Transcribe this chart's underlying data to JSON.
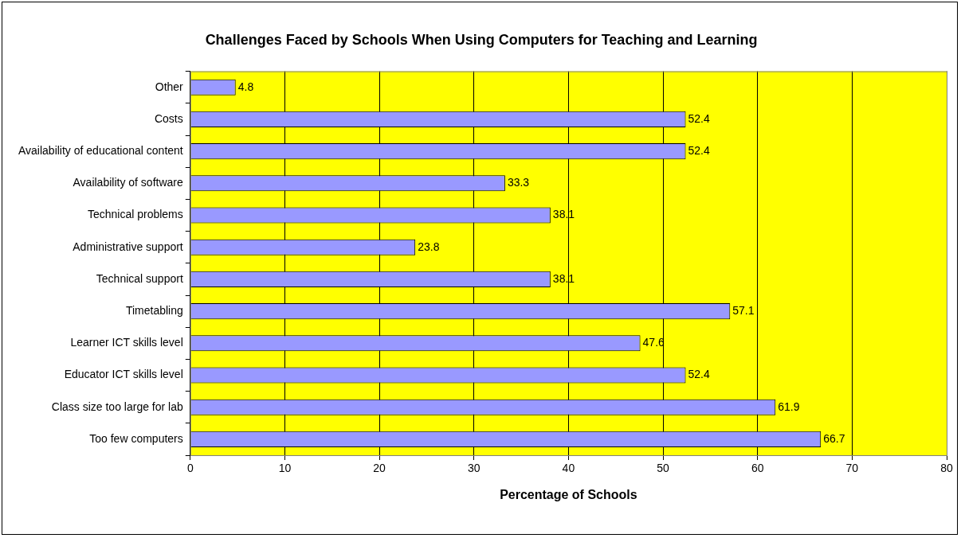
{
  "chart_data": {
    "type": "bar",
    "orientation": "horizontal",
    "title": "Challenges Faced by Schools When Using Computers for Teaching and Learning",
    "xlabel": "Percentage of Schools",
    "categories": [
      "Other",
      "Costs",
      "Availability of educational content",
      "Availability of software",
      "Technical problems",
      "Administrative support",
      "Technical support",
      "Timetabling",
      "Learner ICT skills level",
      "Educator ICT skills level",
      "Class size too large for lab",
      "Too few computers"
    ],
    "values": [
      4.8,
      52.4,
      52.4,
      33.3,
      38.1,
      23.8,
      38.1,
      57.1,
      47.6,
      52.4,
      61.9,
      66.7
    ],
    "color": "#9999ff",
    "xlim": [
      0,
      80
    ],
    "xticks": [
      0,
      10,
      20,
      30,
      40,
      50,
      60,
      70,
      80
    ],
    "grid": "x",
    "data_labels": true,
    "legend": false
  }
}
